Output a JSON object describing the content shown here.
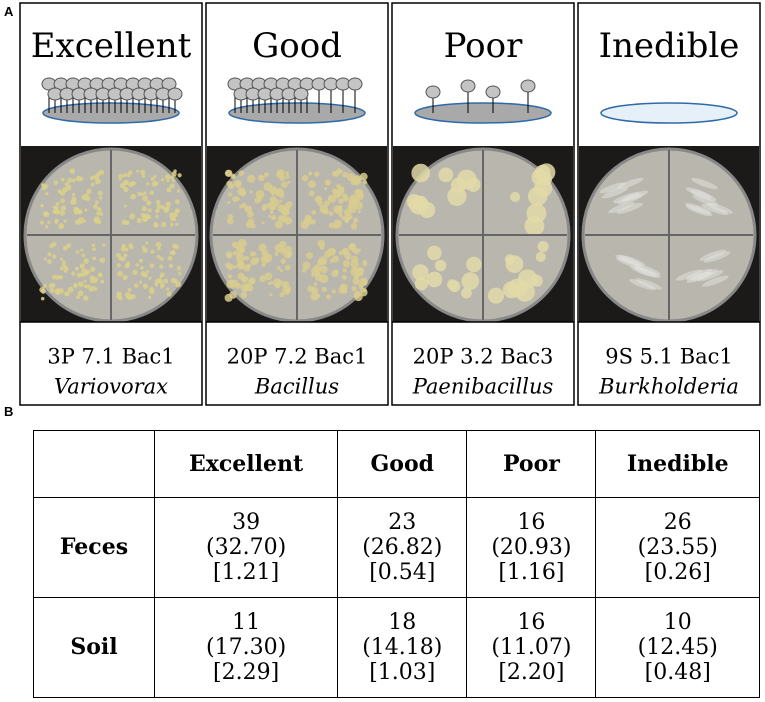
{
  "panel_a": {
    "label": "A",
    "panels": [
      {
        "title": "Excellent",
        "strain": "3P 7.1 Bac1",
        "genus": "Variovorax"
      },
      {
        "title": "Good",
        "strain": "20P 7.2 Bac1",
        "genus": "Bacillus"
      },
      {
        "title": "Poor",
        "strain": "20P 3.2 Bac3",
        "genus": "Paenibacillus"
      },
      {
        "title": "Inedible",
        "strain": "9S 5.1 Bac1",
        "genus": "Burkholderia"
      }
    ]
  },
  "panel_b": {
    "label": "B",
    "table": {
      "columns": [
        "Excellent",
        "Good",
        "Poor",
        "Inedible"
      ],
      "rows": [
        {
          "label": "Feces",
          "cells": [
            [
              "39",
              "(32.70)",
              "[1.21]"
            ],
            [
              "23",
              "(26.82)",
              "[0.54]"
            ],
            [
              "16",
              "(20.93)",
              "[1.16]"
            ],
            [
              "26",
              "(23.55)",
              "[0.26]"
            ]
          ]
        },
        {
          "label": "Soil",
          "cells": [
            [
              "11",
              "(17.30)",
              "[2.29]"
            ],
            [
              "18",
              "(14.18)",
              "[1.03]"
            ],
            [
              "16",
              "(11.07)",
              "[2.20]"
            ],
            [
              "10",
              "(12.45)",
              "[0.48]"
            ]
          ]
        }
      ]
    }
  }
}
